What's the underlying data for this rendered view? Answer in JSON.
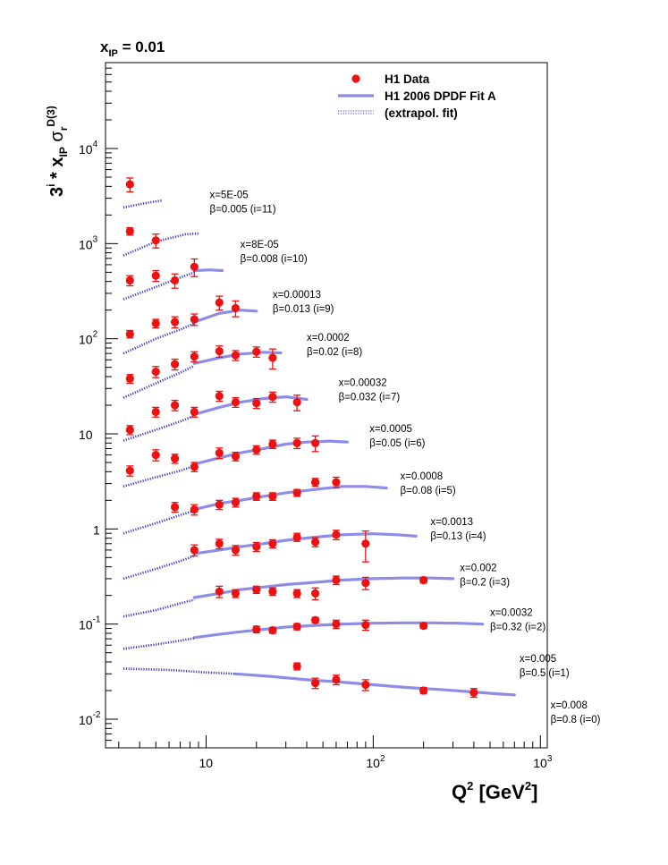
{
  "chart_data": {
    "type": "scatter",
    "title": "x_IP = 0.01",
    "title_parts": {
      "main": "x",
      "sub": "IP",
      "rest": " = 0.01"
    },
    "ylabel_parts": [
      "3",
      "i",
      " * x",
      "IP",
      " σ",
      "r",
      "D(3)"
    ],
    "xlabel_parts": [
      "Q",
      "2",
      " [GeV",
      "2",
      "]"
    ],
    "x_scale": "log",
    "y_scale": "log",
    "xlim": [
      2.5,
      1100
    ],
    "ylim": [
      0.005,
      80000
    ],
    "x_ticks": [
      {
        "v": 10,
        "base": "10",
        "exp": ""
      },
      {
        "v": 100,
        "base": "10",
        "exp": "2"
      },
      {
        "v": 1000,
        "base": "10",
        "exp": "3"
      }
    ],
    "y_ticks": [
      {
        "v": 0.01,
        "base": "10",
        "exp": "-2"
      },
      {
        "v": 0.1,
        "base": "10",
        "exp": "-1"
      },
      {
        "v": 1,
        "base": "1",
        "exp": ""
      },
      {
        "v": 10,
        "base": "10",
        "exp": ""
      },
      {
        "v": 100,
        "base": "10",
        "exp": "2"
      },
      {
        "v": 1000,
        "base": "10",
        "exp": "3"
      },
      {
        "v": 10000,
        "base": "10",
        "exp": "4"
      }
    ],
    "legend": {
      "placement": "top-right",
      "entries": [
        {
          "label": "H1 Data",
          "style": "marker"
        },
        {
          "label": "H1 2006 DPDF Fit A",
          "style": "band"
        },
        {
          "label": "(extrapol. fit)",
          "style": "dotted"
        }
      ]
    },
    "colors": {
      "data": "#ee1111",
      "fit": "#8d8de8",
      "extrap": "#3a3ad0"
    },
    "series": [
      {
        "i": 11,
        "label1": "x=5E-05",
        "label2": "β=0.005 (i=11)",
        "label_at": [
          10.5,
          3000
        ],
        "points": [
          [
            3.5,
            4200,
            700
          ]
        ],
        "fit": [],
        "extrap": [
          [
            3.2,
            2400
          ],
          [
            4.5,
            2700
          ],
          [
            5.5,
            2850
          ]
        ]
      },
      {
        "i": 10,
        "label1": "x=8E-05",
        "label2": "β=0.008 (i=10)",
        "label_at": [
          16,
          900
        ],
        "points": [
          [
            3.5,
            1350,
            120
          ],
          [
            5,
            1080,
            180
          ]
        ],
        "fit": [],
        "extrap": [
          [
            3.2,
            750
          ],
          [
            5,
            1050
          ],
          [
            7.5,
            1250
          ],
          [
            9,
            1280
          ]
        ]
      },
      {
        "i": 9,
        "label1": "x=0.00013",
        "label2": "β=0.013 (i=9)",
        "label_at": [
          25,
          270
        ],
        "points": [
          [
            3.5,
            410,
            50
          ],
          [
            5,
            460,
            60
          ],
          [
            6.5,
            410,
            70
          ],
          [
            8.5,
            570,
            120
          ]
        ],
        "fit": [
          [
            8.5,
            520
          ],
          [
            10.5,
            530
          ],
          [
            12.5,
            520
          ]
        ],
        "extrap": [
          [
            3.2,
            260
          ],
          [
            5,
            350
          ],
          [
            7,
            440
          ],
          [
            8.5,
            500
          ]
        ]
      },
      {
        "i": 8,
        "label1": "x=0.0002",
        "label2": "β=0.02 (i=8)",
        "label_at": [
          40,
          95
        ],
        "points": [
          [
            3.5,
            112,
            10
          ],
          [
            5,
            145,
            15
          ],
          [
            6.5,
            150,
            20
          ],
          [
            8.5,
            160,
            22
          ],
          [
            12,
            240,
            40
          ],
          [
            15,
            210,
            40
          ]
        ],
        "fit": [
          [
            8.5,
            150
          ],
          [
            12,
            185
          ],
          [
            16,
            200
          ],
          [
            20,
            195
          ]
        ],
        "extrap": [
          [
            3.2,
            70
          ],
          [
            5,
            100
          ],
          [
            7,
            125
          ],
          [
            8.5,
            145
          ]
        ]
      },
      {
        "i": 7,
        "label1": "x=0.00032",
        "label2": "β=0.032 (i=7)",
        "label_at": [
          62,
          32
        ],
        "points": [
          [
            3.5,
            38,
            4
          ],
          [
            5,
            45,
            6
          ],
          [
            6.5,
            54,
            7
          ],
          [
            8.5,
            65,
            8
          ],
          [
            12,
            74,
            10
          ],
          [
            15,
            67,
            8
          ],
          [
            20,
            73,
            9
          ],
          [
            25,
            63,
            15
          ]
        ],
        "fit": [
          [
            8.5,
            55
          ],
          [
            12,
            63
          ],
          [
            16,
            69
          ],
          [
            22,
            72
          ],
          [
            28,
            71
          ]
        ],
        "extrap": [
          [
            3.2,
            24
          ],
          [
            5,
            34
          ],
          [
            7,
            44
          ],
          [
            8.5,
            52
          ]
        ]
      },
      {
        "i": 6,
        "label1": "x=0.0005",
        "label2": "β=0.05 (i=6)",
        "label_at": [
          95,
          10.5
        ],
        "points": [
          [
            3.5,
            11,
            1.2
          ],
          [
            5,
            17,
            2
          ],
          [
            6.5,
            20,
            2.5
          ],
          [
            8.5,
            17,
            2
          ],
          [
            12,
            25,
            3
          ],
          [
            15,
            21.5,
            2.5
          ],
          [
            20,
            21,
            2.5
          ],
          [
            25,
            24.5,
            3
          ],
          [
            35,
            21.5,
            4
          ]
        ],
        "fit": [
          [
            8.5,
            16
          ],
          [
            12,
            19
          ],
          [
            16,
            21.5
          ],
          [
            22,
            23.5
          ],
          [
            30,
            24.5
          ],
          [
            40,
            23
          ]
        ],
        "extrap": [
          [
            3.2,
            8.5
          ],
          [
            5,
            11
          ],
          [
            7,
            13.5
          ],
          [
            8.5,
            15.5
          ]
        ]
      },
      {
        "i": 5,
        "label1": "x=0.0008",
        "label2": "β=0.08 (i=5)",
        "label_at": [
          145,
          3.3
        ],
        "points": [
          [
            3.5,
            4.1,
            0.5
          ],
          [
            5,
            6.0,
            0.8
          ],
          [
            6.5,
            5.5,
            0.6
          ],
          [
            8.5,
            4.5,
            0.5
          ],
          [
            12,
            6.3,
            0.8
          ],
          [
            15,
            5.8,
            0.6
          ],
          [
            20,
            6.8,
            0.7
          ],
          [
            25,
            7.8,
            0.8
          ],
          [
            35,
            8.0,
            1
          ],
          [
            45,
            8.0,
            1.5
          ]
        ],
        "fit": [
          [
            8.5,
            4.8
          ],
          [
            12,
            5.6
          ],
          [
            16,
            6.3
          ],
          [
            22,
            7.0
          ],
          [
            30,
            7.8
          ],
          [
            40,
            8.2
          ],
          [
            55,
            8.4
          ],
          [
            70,
            8.2
          ]
        ],
        "extrap": [
          [
            3.2,
            2.8
          ],
          [
            5,
            3.5
          ],
          [
            7,
            4.1
          ],
          [
            8.5,
            4.6
          ]
        ]
      },
      {
        "i": 4,
        "label1": "x=0.0013",
        "label2": "β=0.13 (i=4)",
        "label_at": [
          220,
          1.1
        ],
        "points": [
          [
            6.5,
            1.7,
            0.2
          ],
          [
            8.5,
            1.6,
            0.2
          ],
          [
            12,
            1.8,
            0.2
          ],
          [
            15,
            1.9,
            0.2
          ],
          [
            20,
            2.2,
            0.2
          ],
          [
            25,
            2.2,
            0.2
          ],
          [
            35,
            2.4,
            0.2
          ],
          [
            45,
            3.1,
            0.3
          ],
          [
            60,
            3.1,
            0.4
          ]
        ],
        "fit": [
          [
            8.5,
            1.6
          ],
          [
            12,
            1.85
          ],
          [
            16,
            2.0
          ],
          [
            22,
            2.2
          ],
          [
            30,
            2.4
          ],
          [
            45,
            2.6
          ],
          [
            65,
            2.8
          ],
          [
            90,
            2.8
          ],
          [
            120,
            2.7
          ]
        ],
        "extrap": [
          [
            3.2,
            0.9
          ],
          [
            5,
            1.15
          ],
          [
            7,
            1.4
          ],
          [
            8.5,
            1.55
          ]
        ]
      },
      {
        "i": 3,
        "label1": "x=0.002",
        "label2": "β=0.2 (i=3)",
        "label_at": [
          330,
          0.36
        ],
        "points": [
          [
            8.5,
            0.6,
            0.08
          ],
          [
            12,
            0.7,
            0.08
          ],
          [
            15,
            0.6,
            0.07
          ],
          [
            20,
            0.65,
            0.07
          ],
          [
            25,
            0.7,
            0.07
          ],
          [
            35,
            0.82,
            0.08
          ],
          [
            45,
            0.73,
            0.08
          ],
          [
            60,
            0.87,
            0.1
          ],
          [
            90,
            0.7,
            0.25
          ]
        ],
        "fit": [
          [
            8.5,
            0.55
          ],
          [
            12,
            0.6
          ],
          [
            16,
            0.65
          ],
          [
            22,
            0.7
          ],
          [
            30,
            0.76
          ],
          [
            45,
            0.82
          ],
          [
            65,
            0.87
          ],
          [
            100,
            0.89
          ],
          [
            140,
            0.87
          ],
          [
            180,
            0.84
          ]
        ],
        "extrap": [
          [
            3.2,
            0.3
          ],
          [
            5,
            0.38
          ],
          [
            7,
            0.46
          ],
          [
            8.5,
            0.52
          ]
        ]
      },
      {
        "i": 2,
        "label1": "x=0.0032",
        "label2": "β=0.32 (i=2)",
        "label_at": [
          500,
          0.122
        ],
        "points": [
          [
            12,
            0.22,
            0.03
          ],
          [
            15,
            0.21,
            0.02
          ],
          [
            20,
            0.23,
            0.02
          ],
          [
            25,
            0.22,
            0.02
          ],
          [
            35,
            0.21,
            0.02
          ],
          [
            45,
            0.21,
            0.03
          ],
          [
            60,
            0.29,
            0.03
          ],
          [
            90,
            0.27,
            0.04
          ],
          [
            200,
            0.29,
            0.02
          ]
        ],
        "fit": [
          [
            8.5,
            0.19
          ],
          [
            12,
            0.21
          ],
          [
            16,
            0.23
          ],
          [
            22,
            0.245
          ],
          [
            30,
            0.26
          ],
          [
            45,
            0.275
          ],
          [
            65,
            0.29
          ],
          [
            100,
            0.3
          ],
          [
            150,
            0.305
          ],
          [
            220,
            0.305
          ],
          [
            300,
            0.3
          ]
        ],
        "extrap": [
          [
            3.2,
            0.12
          ],
          [
            5,
            0.14
          ],
          [
            7,
            0.165
          ],
          [
            8.5,
            0.18
          ]
        ]
      },
      {
        "i": 1,
        "label1": "x=0.005",
        "label2": "β=0.5 (i=1)",
        "label_at": [
          750,
          0.04
        ],
        "points": [
          [
            20,
            0.088,
            0.007
          ],
          [
            25,
            0.086,
            0.006
          ],
          [
            35,
            0.094,
            0.007
          ],
          [
            45,
            0.11,
            0.007
          ],
          [
            60,
            0.1,
            0.01
          ],
          [
            90,
            0.098,
            0.012
          ],
          [
            200,
            0.096,
            0.006
          ]
        ],
        "fit": [
          [
            8.5,
            0.072
          ],
          [
            12,
            0.078
          ],
          [
            16,
            0.083
          ],
          [
            22,
            0.088
          ],
          [
            30,
            0.093
          ],
          [
            45,
            0.097
          ],
          [
            65,
            0.1
          ],
          [
            100,
            0.102
          ],
          [
            150,
            0.103
          ],
          [
            220,
            0.103
          ],
          [
            320,
            0.102
          ],
          [
            450,
            0.1
          ]
        ],
        "extrap": [
          [
            3.2,
            0.055
          ],
          [
            5,
            0.061
          ],
          [
            7,
            0.067
          ],
          [
            8.5,
            0.071
          ]
        ]
      },
      {
        "i": 0,
        "label1": "x=0.008",
        "label2": "β=0.8 (i=0)",
        "label_at": [
          1150,
          0.013
        ],
        "points": [
          [
            35,
            0.036,
            0.003
          ],
          [
            45,
            0.024,
            0.003
          ],
          [
            60,
            0.026,
            0.003
          ],
          [
            90,
            0.023,
            0.003
          ],
          [
            200,
            0.02,
            0.0015
          ],
          [
            400,
            0.019,
            0.002
          ]
        ],
        "fit": [
          [
            15,
            0.03
          ],
          [
            25,
            0.028
          ],
          [
            40,
            0.026
          ],
          [
            65,
            0.0245
          ],
          [
            100,
            0.023
          ],
          [
            160,
            0.0215
          ],
          [
            250,
            0.0205
          ],
          [
            400,
            0.0193
          ],
          [
            550,
            0.0185
          ],
          [
            700,
            0.018
          ]
        ],
        "extrap": [
          [
            3.2,
            0.034
          ],
          [
            6,
            0.033
          ],
          [
            10,
            0.031
          ],
          [
            15,
            0.03
          ]
        ]
      }
    ]
  }
}
